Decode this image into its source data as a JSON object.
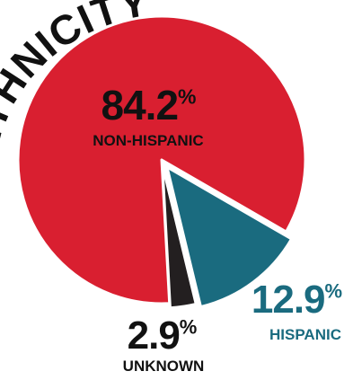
{
  "chart_data": {
    "type": "pie",
    "title": "ETHNICITY",
    "unit": "%",
    "categories": [
      "NON-HISPANIC",
      "HISPANIC",
      "UNKNOWN"
    ],
    "values": [
      84.2,
      12.9,
      2.9
    ],
    "colors": [
      "#d91f30",
      "#1a6b7f",
      "#231f20"
    ]
  }
}
